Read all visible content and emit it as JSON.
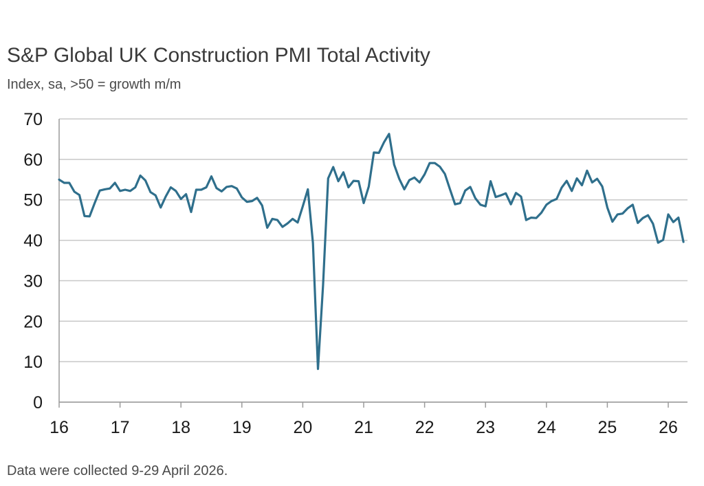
{
  "chart_data": {
    "type": "line",
    "title": "S&P Global UK Construction PMI Total Activity",
    "subtitle": "Index, sa, >50 = growth m/m",
    "footnote": "Data were collected 9-29 April 2026.",
    "xlabel": "",
    "ylabel": "",
    "ylim": [
      0,
      70
    ],
    "yticks": [
      0,
      10,
      20,
      30,
      40,
      50,
      60,
      70
    ],
    "x_tick_labels": [
      "16",
      "17",
      "18",
      "19",
      "20",
      "21",
      "22",
      "23",
      "24",
      "25",
      "26"
    ],
    "x_range": [
      "2016-01",
      "2026-04"
    ],
    "grid": "horizontal",
    "line_color": "#2f6f8c",
    "series": [
      {
        "x": [
          "2016-01",
          "2016-02",
          "2016-03",
          "2016-04",
          "2016-05",
          "2016-06",
          "2016-07",
          "2016-08",
          "2016-09",
          "2016-10",
          "2016-11",
          "2016-12",
          "2017-01",
          "2017-02",
          "2017-03",
          "2017-04",
          "2017-05",
          "2017-06",
          "2017-07",
          "2017-08",
          "2017-09",
          "2017-10",
          "2017-11",
          "2017-12",
          "2018-01",
          "2018-02",
          "2018-03",
          "2018-04",
          "2018-05",
          "2018-06",
          "2018-07",
          "2018-08",
          "2018-09",
          "2018-10",
          "2018-11",
          "2018-12",
          "2019-01",
          "2019-02",
          "2019-03",
          "2019-04",
          "2019-05",
          "2019-06",
          "2019-07",
          "2019-08",
          "2019-09",
          "2019-10",
          "2019-11",
          "2019-12",
          "2020-01",
          "2020-02",
          "2020-03",
          "2020-04",
          "2020-05",
          "2020-06",
          "2020-07",
          "2020-08",
          "2020-09",
          "2020-10",
          "2020-11",
          "2020-12",
          "2021-01",
          "2021-02",
          "2021-03",
          "2021-04",
          "2021-05",
          "2021-06",
          "2021-07",
          "2021-08",
          "2021-09",
          "2021-10",
          "2021-11",
          "2021-12",
          "2022-01",
          "2022-02",
          "2022-03",
          "2022-04",
          "2022-05",
          "2022-06",
          "2022-07",
          "2022-08",
          "2022-09",
          "2022-10",
          "2022-11",
          "2022-12",
          "2023-01",
          "2023-02",
          "2023-03",
          "2023-04",
          "2023-05",
          "2023-06",
          "2023-07",
          "2023-08",
          "2023-09",
          "2023-10",
          "2023-11",
          "2023-12",
          "2024-01",
          "2024-02",
          "2024-03",
          "2024-04",
          "2024-05",
          "2024-06",
          "2024-07",
          "2024-08",
          "2024-09",
          "2024-10",
          "2024-11",
          "2024-12",
          "2025-01",
          "2025-02",
          "2025-03",
          "2025-04",
          "2025-05",
          "2025-06",
          "2025-07",
          "2025-08",
          "2025-09",
          "2025-10",
          "2025-11",
          "2025-12",
          "2026-01",
          "2026-02",
          "2026-03",
          "2026-04"
        ],
        "values": [
          55.0,
          54.2,
          54.2,
          52.0,
          51.2,
          46.0,
          45.9,
          49.2,
          52.3,
          52.6,
          52.8,
          54.2,
          52.2,
          52.5,
          52.2,
          53.1,
          56.0,
          54.8,
          51.9,
          51.1,
          48.1,
          50.8,
          53.1,
          52.2,
          50.2,
          51.4,
          47.0,
          52.5,
          52.5,
          53.1,
          55.8,
          52.9,
          52.1,
          53.2,
          53.4,
          52.8,
          50.6,
          49.5,
          49.7,
          50.5,
          48.6,
          43.1,
          45.3,
          45.0,
          43.3,
          44.2,
          45.3,
          44.4,
          48.4,
          52.6,
          39.3,
          8.2,
          28.9,
          55.3,
          58.1,
          54.6,
          56.8,
          53.1,
          54.7,
          54.6,
          49.2,
          53.3,
          61.7,
          61.6,
          64.2,
          66.3,
          58.7,
          55.2,
          52.6,
          54.9,
          55.5,
          54.3,
          56.3,
          59.1,
          59.1,
          58.2,
          56.4,
          52.6,
          48.9,
          49.2,
          52.3,
          53.2,
          50.4,
          48.8,
          48.4,
          54.6,
          50.7,
          51.1,
          51.6,
          48.9,
          51.7,
          50.8,
          45.0,
          45.6,
          45.5,
          46.8,
          48.8,
          49.7,
          50.2,
          53.0,
          54.7,
          52.2,
          55.3,
          53.6,
          57.2,
          54.3,
          55.2,
          53.3,
          48.1,
          44.6,
          46.4,
          46.6,
          47.9,
          48.8,
          44.3,
          45.5,
          46.2,
          44.1,
          39.4,
          40.1,
          46.4,
          44.5,
          45.6,
          39.6
        ]
      }
    ]
  }
}
